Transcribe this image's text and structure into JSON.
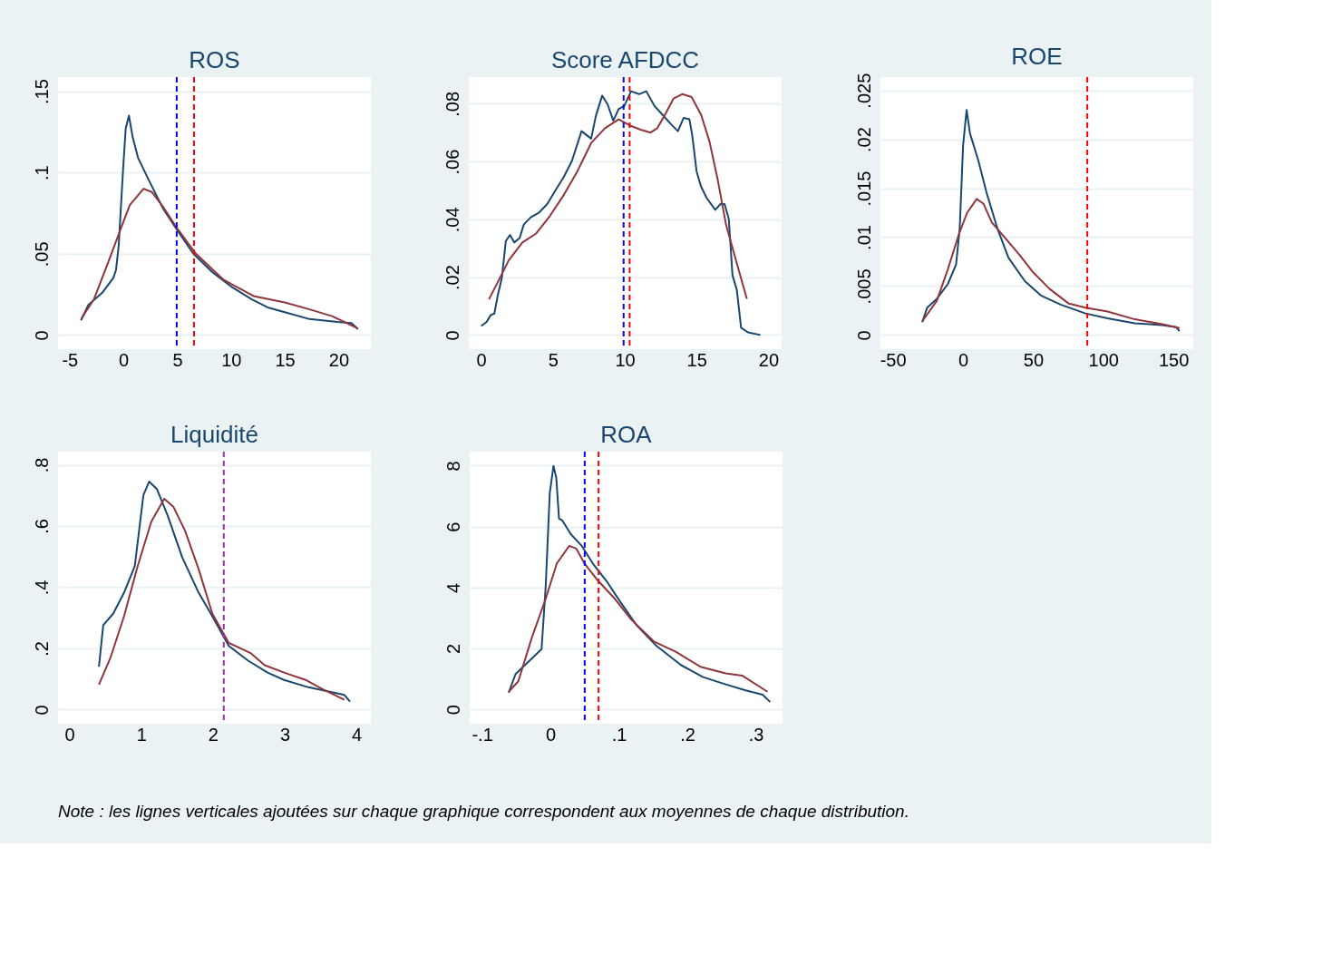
{
  "chart_data": [
    {
      "type": "line",
      "title": "ROS",
      "grid": "y",
      "xlim": [
        -6.08,
        23
      ],
      "xticks": [
        {
          "value": -5,
          "label": "-5"
        },
        0,
        5,
        10,
        15,
        20
      ],
      "ylim": [
        -0.0087,
        0.1587
      ],
      "yticks": [
        0,
        {
          "value": 0.05,
          "label": ".05"
        },
        {
          "value": 0.1,
          "label": ".1"
        },
        {
          "value": 0.15,
          "label": ".15"
        }
      ],
      "series": [
        {
          "color": "#1a476f",
          "x": [
            -3.95,
            -3.26,
            -1.97,
            -0.95,
            -0.69,
            -0.44,
            -0.05,
            0.21,
            0.51,
            0.85,
            1.36,
            2.38,
            3.67,
            4.95,
            6.5,
            8.3,
            10.1,
            11.9,
            13.4,
            15,
            17.3,
            19.9,
            21.2,
            21.8
          ],
          "values": [
            0.009,
            0.0185,
            0.026,
            0.035,
            0.04,
            0.055,
            0.1,
            0.127,
            0.135,
            0.122,
            0.109,
            0.095,
            0.078,
            0.065,
            0.05,
            0.0385,
            0.0294,
            0.0221,
            0.017,
            0.014,
            0.0098,
            0.008,
            0.0073,
            0.0036
          ]
        },
        {
          "color": "#90353b",
          "x": [
            -3.9,
            -2.74,
            -1.46,
            -0.44,
            0.59,
            1.87,
            2.64,
            3.67,
            4.95,
            6.74,
            9.3,
            12.1,
            15,
            17.3,
            19.4,
            21.7
          ],
          "values": [
            0.0103,
            0.022,
            0.044,
            0.062,
            0.08,
            0.09,
            0.088,
            0.079,
            0.066,
            0.05,
            0.034,
            0.024,
            0.02,
            0.0158,
            0.0116,
            0.0044
          ]
        }
      ],
      "ref_lines": [
        {
          "axis": "x",
          "value": 4.95,
          "color": "#0000ff",
          "line_style": "dashed"
        },
        {
          "axis": "x",
          "value": 6.56,
          "color": "#ff0000",
          "line_style": "dashed"
        }
      ]
    },
    {
      "type": "line",
      "title": "Score AFDCC",
      "grid": "y",
      "xlim": [
        -0.86,
        20.92
      ],
      "xticks": [
        0,
        5,
        10,
        15,
        20
      ],
      "ylim": [
        -0.0049,
        0.0892
      ],
      "yticks": [
        0,
        {
          "value": 0.02,
          "label": ".02"
        },
        {
          "value": 0.04,
          "label": ".04"
        },
        {
          "value": 0.06,
          "label": ".06"
        },
        {
          "value": 0.08,
          "label": ".08"
        }
      ],
      "series": [
        {
          "color": "#1a476f",
          "x": [
            0,
            0.38,
            0.67,
            0.92,
            1.15,
            1.44,
            1.72,
            2.01,
            2.3,
            2.68,
            2.97,
            3.45,
            4.02,
            4.6,
            5.17,
            5.75,
            6.32,
            6.99,
            7.66,
            8.0,
            8.43,
            8.81,
            9.2,
            9.58,
            9.96,
            10.44,
            11.0,
            11.5,
            12.07,
            12.64,
            13.2,
            13.7,
            14.1,
            14.5,
            14.7,
            15.0,
            15.3,
            15.7,
            16.3,
            16.67,
            16.95,
            17.24,
            17.5,
            17.8,
            18.1,
            18.58,
            19.44
          ],
          "values": [
            0.0031,
            0.0045,
            0.0069,
            0.0074,
            0.0135,
            0.0197,
            0.0325,
            0.0346,
            0.032,
            0.0335,
            0.0382,
            0.0407,
            0.0423,
            0.0453,
            0.05,
            0.0546,
            0.0602,
            0.0705,
            0.0679,
            0.076,
            0.0828,
            0.0797,
            0.0741,
            0.0782,
            0.0792,
            0.0843,
            0.0833,
            0.0843,
            0.0792,
            0.0761,
            0.073,
            0.0705,
            0.0751,
            0.0746,
            0.069,
            0.0566,
            0.0515,
            0.0474,
            0.0433,
            0.0453,
            0.0453,
            0.0402,
            0.0207,
            0.0156,
            0.0025,
            0.0009,
            0
          ]
        },
        {
          "color": "#90353b",
          "x": [
            0.54,
            1.15,
            1.92,
            2.87,
            3.83,
            4.79,
            5.75,
            6.7,
            7.66,
            8.62,
            9.58,
            10.34,
            11.1,
            11.8,
            12.26,
            12.84,
            13.4,
            14.0,
            14.65,
            15.32,
            15.9,
            16.48,
            17.05,
            17.8,
            18.5
          ],
          "values": [
            0.0123,
            0.0182,
            0.0258,
            0.032,
            0.0351,
            0.0412,
            0.0484,
            0.0566,
            0.0664,
            0.0715,
            0.0746,
            0.0725,
            0.071,
            0.07,
            0.0715,
            0.0766,
            0.0818,
            0.0833,
            0.0823,
            0.0761,
            0.0669,
            0.0535,
            0.0382,
            0.0248,
            0.0125
          ]
        }
      ],
      "ref_lines": [
        {
          "axis": "x",
          "value": 9.92,
          "color": "#0000ff",
          "line_style": "dashed"
        },
        {
          "axis": "x",
          "value": 10.34,
          "color": "#ff0000",
          "line_style": "dashed"
        }
      ]
    },
    {
      "type": "line",
      "title": "ROE",
      "grid": "y",
      "xlim": [
        -58.8,
        164.1
      ],
      "xticks": [
        {
          "value": -50,
          "label": "-50"
        },
        0,
        50,
        100,
        150
      ],
      "ylim": [
        -0.00145,
        0.02636
      ],
      "yticks": [
        0,
        {
          "value": 0.005,
          "label": ".005"
        },
        {
          "value": 0.01,
          "label": ".01"
        },
        {
          "value": 0.015,
          "label": ".015"
        },
        {
          "value": 0.02,
          "label": ".02"
        },
        {
          "value": 0.025,
          "label": ".025"
        }
      ],
      "series": [
        {
          "color": "#1a476f",
          "x": [
            -29,
            -25.5,
            -18.6,
            -10.8,
            -4.9,
            -2.3,
            0.1,
            2.6,
            5,
            10.8,
            16.7,
            24.5,
            32.4,
            44.1,
            55.9,
            69.6,
            87.3,
            103,
            122.5,
            142,
            151.9,
            154.3
          ],
          "values": [
            0.0013,
            0.0028,
            0.0037,
            0.0052,
            0.0072,
            0.0109,
            0.0194,
            0.023,
            0.0206,
            0.0179,
            0.0146,
            0.0109,
            0.0079,
            0.0055,
            0.004,
            0.0031,
            0.0022,
            0.0017,
            0.0012,
            0.001,
            0.0008,
            0.0004
          ]
        },
        {
          "color": "#90353b",
          "x": [
            -29,
            -18.6,
            -10.8,
            -2.9,
            3,
            9.8,
            14.7,
            20.6,
            28.4,
            40.2,
            50,
            61.8,
            75.5,
            87.3,
            103,
            122.5,
            142,
            154.3
          ],
          "values": [
            0.0014,
            0.0035,
            0.0067,
            0.0103,
            0.0125,
            0.0139,
            0.0134,
            0.0115,
            0.0102,
            0.0082,
            0.0064,
            0.0047,
            0.0032,
            0.0028,
            0.0024,
            0.0016,
            0.0011,
            0.0007
          ]
        }
      ],
      "ref_lines": [
        {
          "axis": "x",
          "value": 88.6,
          "color": "#ff0000",
          "line_style": "dashed"
        }
      ]
    },
    {
      "type": "line",
      "title": "Liquidité",
      "grid": "y",
      "xlim": [
        -0.16,
        4.2
      ],
      "xticks": [
        0,
        1,
        2,
        3,
        4
      ],
      "ylim": [
        -0.046,
        0.843
      ],
      "yticks": [
        0,
        {
          "value": 0.2,
          "label": ".2"
        },
        {
          "value": 0.4,
          "label": ".4"
        },
        {
          "value": 0.6,
          "label": ".6"
        },
        {
          "value": 0.8,
          "label": ".8"
        }
      ],
      "series": [
        {
          "color": "#1a476f",
          "x": [
            0.41,
            0.47,
            0.61,
            0.76,
            0.91,
            1.03,
            1.11,
            1.22,
            1.37,
            1.57,
            1.8,
            1.99,
            2.22,
            2.49,
            2.76,
            2.99,
            3.33,
            3.64,
            3.83,
            3.91
          ],
          "values": [
            0.14,
            0.276,
            0.314,
            0.382,
            0.469,
            0.701,
            0.745,
            0.72,
            0.633,
            0.498,
            0.382,
            0.305,
            0.208,
            0.16,
            0.121,
            0.097,
            0.073,
            0.058,
            0.048,
            0.026
          ]
        },
        {
          "color": "#90353b",
          "x": [
            0.41,
            0.57,
            0.76,
            0.95,
            1.14,
            1.32,
            1.45,
            1.61,
            1.8,
            1.99,
            2.22,
            2.53,
            2.72,
            2.99,
            3.29,
            3.52,
            3.83
          ],
          "values": [
            0.082,
            0.169,
            0.305,
            0.469,
            0.614,
            0.689,
            0.662,
            0.585,
            0.459,
            0.314,
            0.218,
            0.184,
            0.145,
            0.121,
            0.097,
            0.068,
            0.032
          ]
        }
      ],
      "ref_lines": [
        {
          "axis": "x",
          "value": 2.15,
          "color": "#9b30a8",
          "line_style": "dashed"
        }
      ]
    },
    {
      "type": "line",
      "title": "ROA",
      "grid": "y",
      "xlim": [
        -0.118,
        0.339
      ],
      "xticks": [
        {
          "value": -0.1,
          "label": "-.1"
        },
        0,
        {
          "value": 0.1,
          "label": ".1"
        },
        {
          "value": 0.2,
          "label": ".2"
        },
        {
          "value": 0.3,
          "label": ".3"
        }
      ],
      "ylim": [
        -0.47,
        8.46
      ],
      "yticks": [
        0,
        2,
        4,
        6,
        8
      ],
      "series": [
        {
          "color": "#1a476f",
          "x": [
            -0.061,
            -0.051,
            -0.035,
            -0.013,
            -0.007,
            -0.001,
            0.0044,
            0.0085,
            0.0125,
            0.0174,
            0.0295,
            0.0456,
            0.0618,
            0.082,
            0.102,
            0.126,
            0.155,
            0.191,
            0.223,
            0.256,
            0.284,
            0.31,
            0.321
          ],
          "values": [
            0.55,
            1.16,
            1.5,
            1.98,
            4.02,
            7.1,
            7.99,
            7.6,
            6.26,
            6.2,
            5.76,
            5.37,
            4.79,
            4.21,
            3.53,
            2.76,
            2.08,
            1.45,
            1.06,
            0.82,
            0.63,
            0.48,
            0.24
          ]
        },
        {
          "color": "#90353b",
          "x": [
            -0.061,
            -0.047,
            -0.027,
            -0.007,
            0.0093,
            0.0275,
            0.0376,
            0.0497,
            0.07,
            0.0941,
            0.118,
            0.151,
            0.183,
            0.219,
            0.256,
            0.28,
            0.317
          ],
          "values": [
            0.58,
            0.92,
            2.37,
            3.63,
            4.79,
            5.37,
            5.28,
            4.79,
            4.21,
            3.63,
            2.95,
            2.23,
            1.89,
            1.4,
            1.18,
            1.11,
            0.58
          ]
        }
      ],
      "ref_lines": [
        {
          "axis": "x",
          "value": 0.05,
          "color": "#0000ff",
          "line_style": "dashed"
        },
        {
          "axis": "x",
          "value": 0.0703,
          "color": "#ff0000",
          "line_style": "dashed"
        }
      ],
      "annotations": [
        "Note : les lignes verticales ajoutées sur chaque graphique correspondent aux moyennes de chaque distribution."
      ]
    }
  ]
}
